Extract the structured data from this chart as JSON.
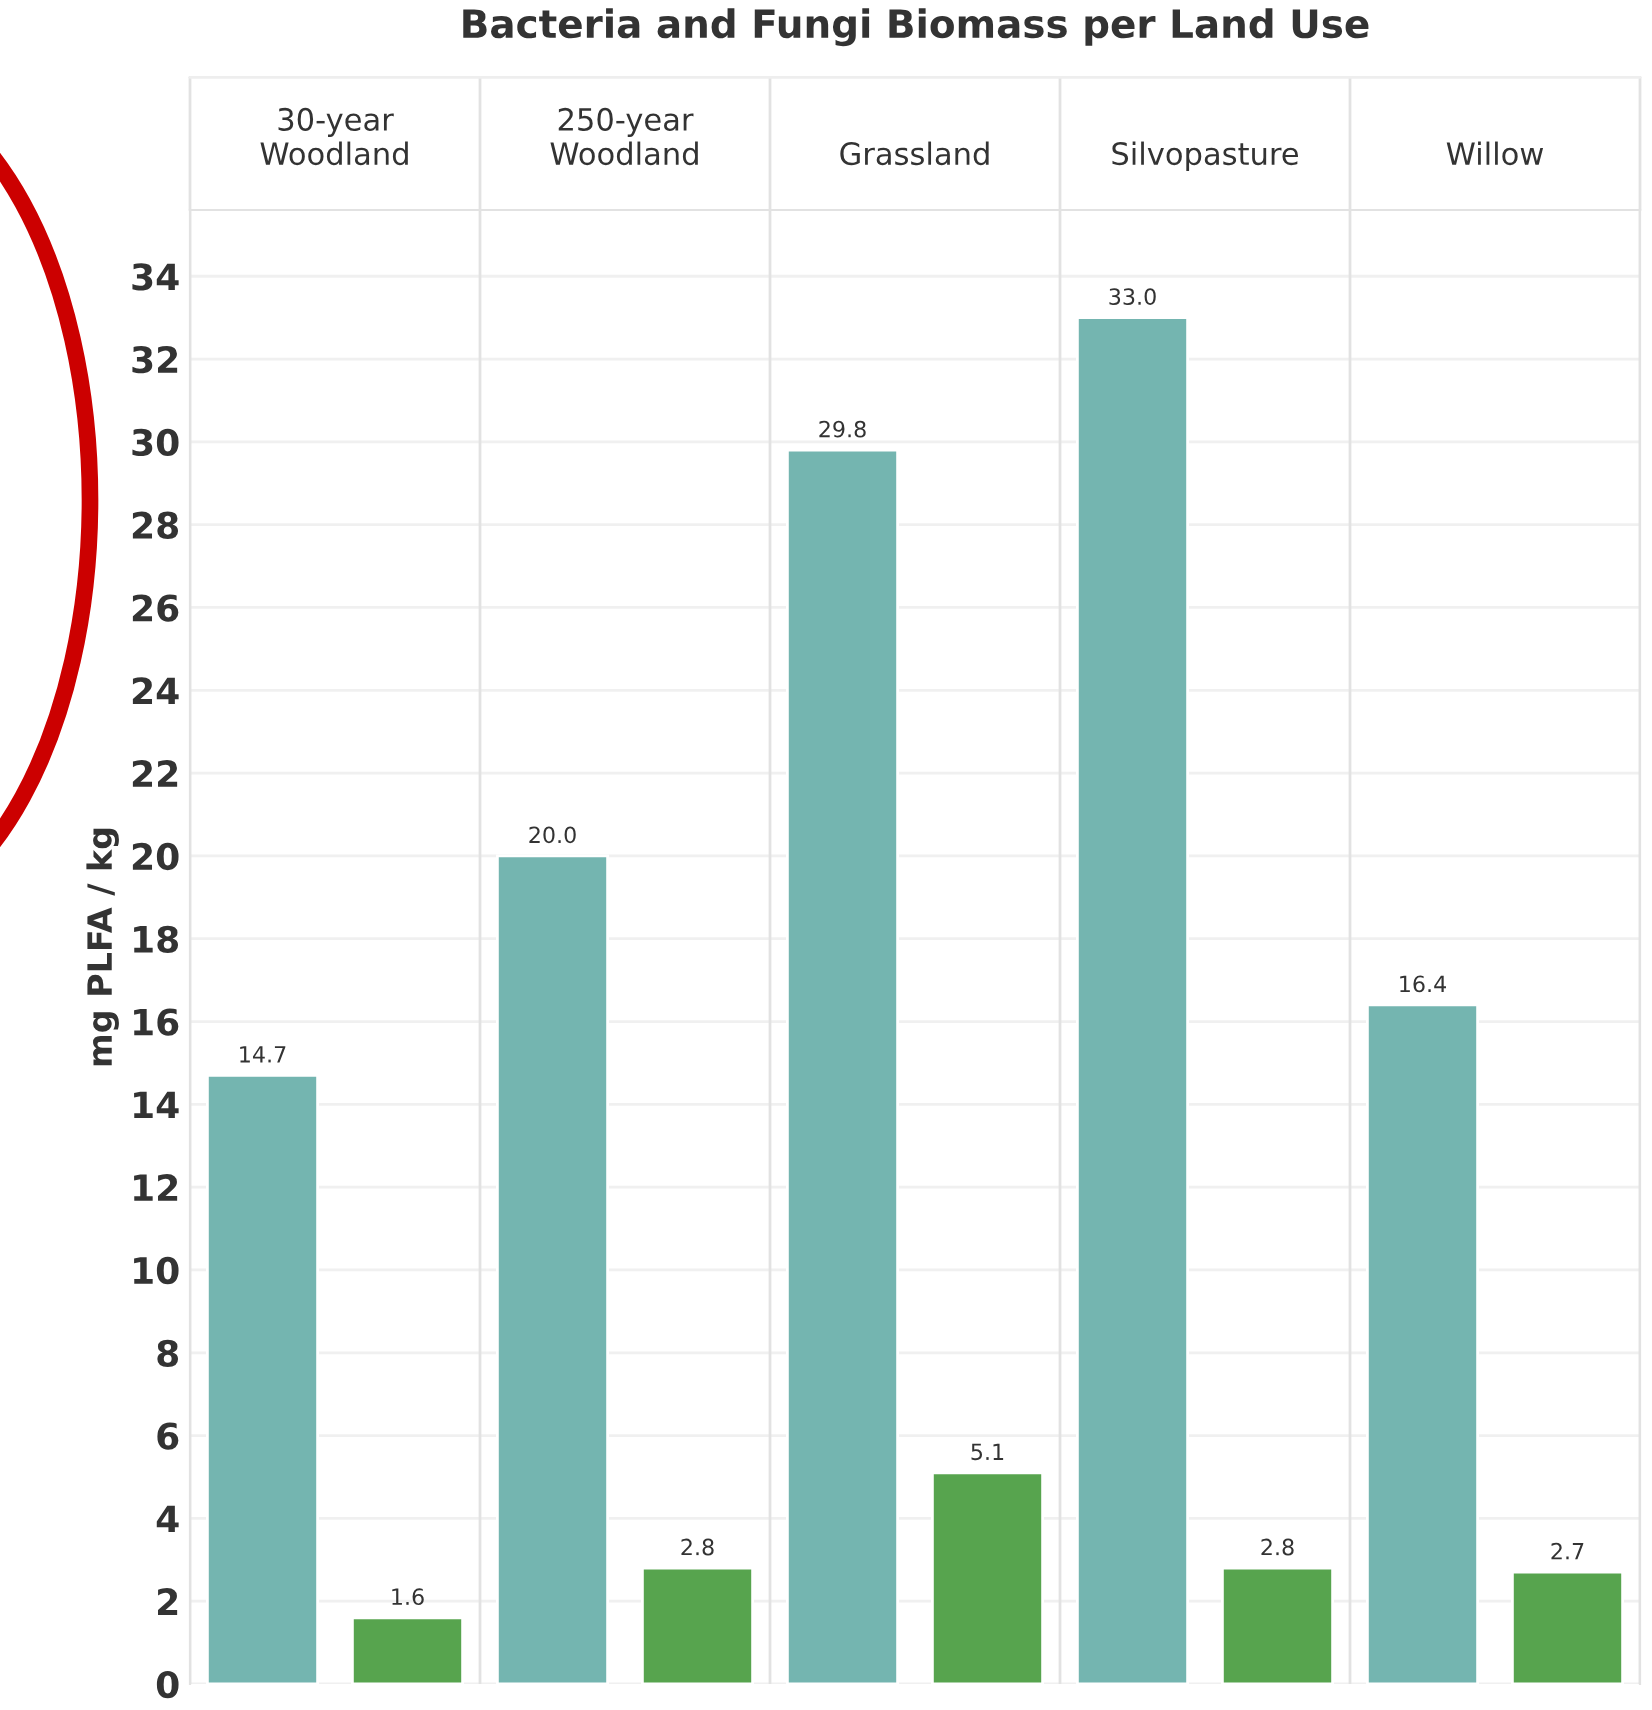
{
  "chart_data": {
    "type": "bar",
    "title": "Bacteria and Fungi Biomass per Land Use",
    "ylabel": "mg PLFA / kg",
    "categories": [
      "30-year\nWoodland",
      "250-year\nWoodland",
      "Grassland",
      "Silvopasture",
      "Willow"
    ],
    "series": [
      {
        "color": "#74b5b0",
        "values": [
          14.7,
          20.0,
          29.8,
          33.0,
          16.4
        ],
        "value_labels": [
          "14.7",
          "20.0",
          "29.8",
          "33.0",
          "16.4"
        ]
      },
      {
        "color": "#57a44e",
        "values": [
          1.6,
          2.8,
          5.1,
          2.8,
          2.7
        ],
        "value_labels": [
          "1.6",
          "2.8",
          "5.1",
          "2.8",
          "2.7"
        ]
      }
    ],
    "ylim": [
      0,
      35.6
    ],
    "yticks": [
      0,
      2,
      4,
      6,
      8,
      10,
      12,
      14,
      16,
      18,
      20,
      22,
      24,
      26,
      28,
      30,
      32,
      34
    ],
    "grid": "y",
    "legend": false
  }
}
